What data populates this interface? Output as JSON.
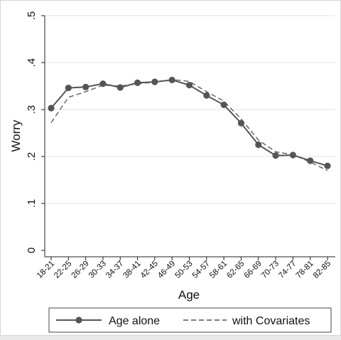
{
  "chart_data": {
    "type": "line",
    "xlabel": "Age",
    "ylabel": "Worry",
    "ylim": [
      0,
      0.5
    ],
    "yticks": [
      0,
      0.1,
      0.2,
      0.3,
      0.4,
      0.5
    ],
    "ytick_labels": [
      "0",
      ".1",
      ".2",
      ".3",
      ".4",
      ".5"
    ],
    "categories": [
      "18-21",
      "22-25",
      "26-29",
      "30-33",
      "34-37",
      "38-41",
      "42-45",
      "46-49",
      "50-53",
      "54-57",
      "58-61",
      "62-65",
      "66-69",
      "70-73",
      "74-77",
      "78-81",
      "82-85"
    ],
    "grid": true,
    "legend_position": "bottom",
    "series": [
      {
        "name": "Age alone",
        "style": "solid-marker",
        "color": "#555555",
        "values": [
          0.303,
          0.346,
          0.348,
          0.355,
          0.347,
          0.357,
          0.359,
          0.363,
          0.352,
          0.33,
          0.31,
          0.271,
          0.225,
          0.202,
          0.203,
          0.191,
          0.18
        ]
      },
      {
        "name": "with Covariates",
        "style": "dashed",
        "color": "#555555",
        "values": [
          0.272,
          0.326,
          0.338,
          0.352,
          0.35,
          0.355,
          0.358,
          0.364,
          0.36,
          0.338,
          0.318,
          0.28,
          0.235,
          0.21,
          0.204,
          0.188,
          0.17
        ]
      }
    ]
  }
}
